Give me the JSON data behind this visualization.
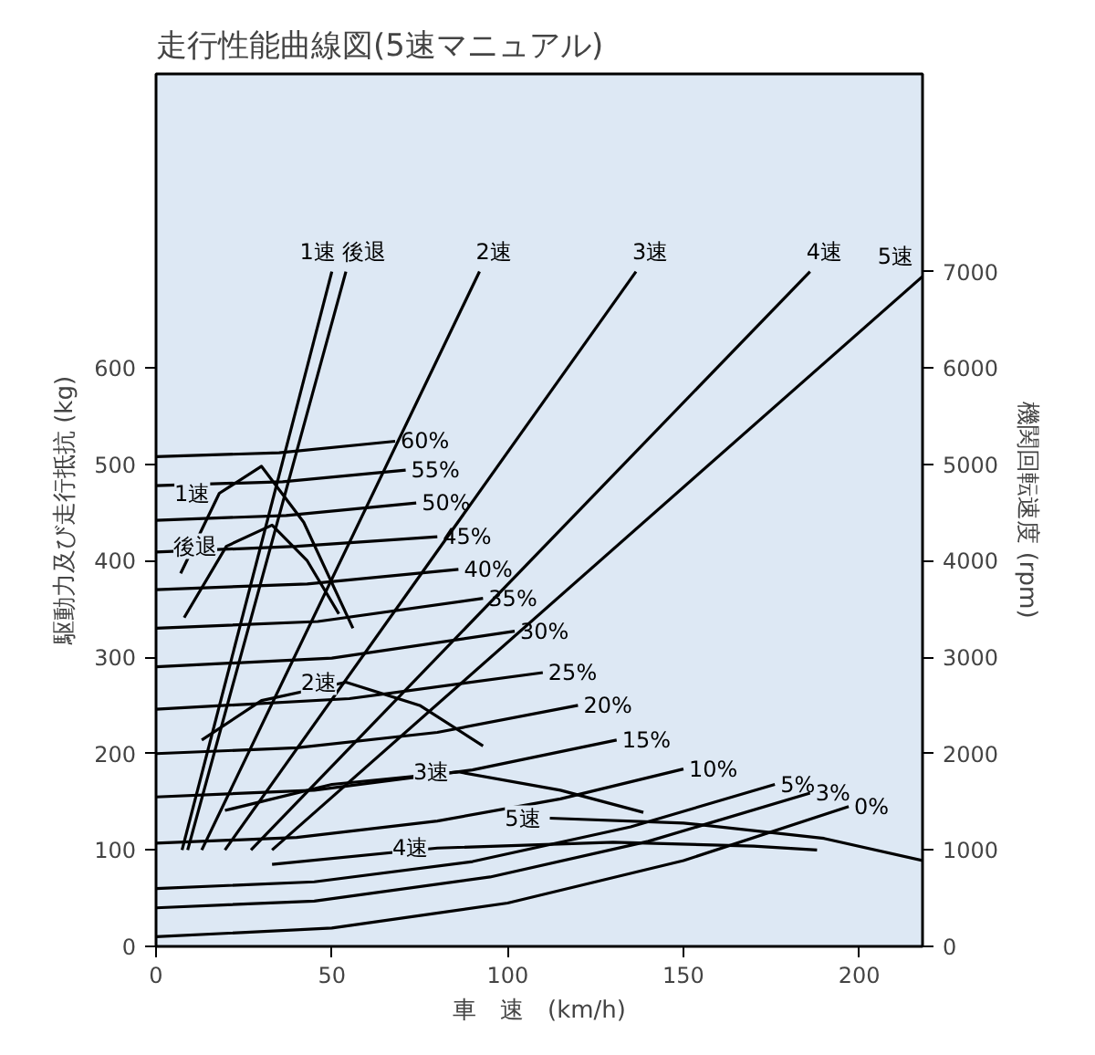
{
  "chart_data": {
    "type": "line",
    "title": "走行性能曲線図(5速マニュアル)",
    "xlabel": "車　速　(km/h)",
    "ylabel": "駆動力及び走行抵抗 (kg)",
    "y2label": "機関回転速度 (rpm)",
    "xlim": [
      0,
      218
    ],
    "xticks": [
      0,
      50,
      100,
      150,
      200
    ],
    "ylim": [
      0,
      905
    ],
    "yticks": [
      0,
      100,
      200,
      300,
      400,
      500,
      600
    ],
    "y2lim": [
      0,
      9050
    ],
    "y2ticks": [
      0,
      1000,
      2000,
      3000,
      4000,
      5000,
      6000,
      7000
    ],
    "grid": false,
    "line_style": "solid",
    "marker": "none",
    "series": [
      {
        "name": "1速",
        "color": "#000000",
        "axis": "y2",
        "x": [
          7.4,
          50
        ],
        "values": [
          1000,
          7000
        ]
      },
      {
        "name": "後退",
        "color": "#000000",
        "axis": "y2",
        "x": [
          9,
          54
        ],
        "values": [
          1000,
          7000
        ]
      },
      {
        "name": "2速",
        "color": "#000000",
        "axis": "y2",
        "x": [
          13,
          92
        ],
        "values": [
          1000,
          7000
        ]
      },
      {
        "name": "3速",
        "color": "#000000",
        "axis": "y2",
        "x": [
          19.6,
          136.5
        ],
        "values": [
          1000,
          7000
        ]
      },
      {
        "name": "4速",
        "color": "#000000",
        "axis": "y2",
        "x": [
          27,
          186
        ],
        "values": [
          1000,
          7000
        ]
      },
      {
        "name": "5速",
        "color": "#000000",
        "axis": "y2",
        "x": [
          33,
          218
        ],
        "values": [
          1000,
          6950
        ]
      },
      {
        "name": "60%",
        "color": "#000000",
        "x": [
          0,
          35,
          68
        ],
        "values": [
          508,
          512,
          524
        ]
      },
      {
        "name": "55%",
        "color": "#000000",
        "x": [
          0,
          36,
          71
        ],
        "values": [
          478,
          482,
          494
        ]
      },
      {
        "name": "50%",
        "color": "#000000",
        "x": [
          0,
          37,
          74
        ],
        "values": [
          442,
          447,
          460
        ]
      },
      {
        "name": "45%",
        "color": "#000000",
        "x": [
          0,
          40,
          80
        ],
        "values": [
          409,
          415,
          425
        ]
      },
      {
        "name": "40%",
        "color": "#000000",
        "x": [
          0,
          43,
          86
        ],
        "values": [
          370,
          376,
          391
        ]
      },
      {
        "name": "35%",
        "color": "#000000",
        "x": [
          0,
          46,
          93
        ],
        "values": [
          330,
          337,
          361
        ]
      },
      {
        "name": "30%",
        "color": "#000000",
        "x": [
          0,
          50,
          102
        ],
        "values": [
          290,
          299,
          327
        ]
      },
      {
        "name": "25%",
        "color": "#000000",
        "x": [
          0,
          55,
          110
        ],
        "values": [
          246,
          257,
          284
        ]
      },
      {
        "name": "20%",
        "color": "#000000",
        "x": [
          0,
          40,
          80,
          120
        ],
        "values": [
          200,
          206,
          222,
          250
        ]
      },
      {
        "name": "15%",
        "color": "#000000",
        "x": [
          0,
          45,
          90,
          131
        ],
        "values": [
          155,
          162,
          183,
          214
        ]
      },
      {
        "name": "10%",
        "color": "#000000",
        "x": [
          0,
          40,
          80,
          115,
          150
        ],
        "values": [
          107,
          113,
          130,
          153,
          184
        ]
      },
      {
        "name": "5%",
        "color": "#000000",
        "x": [
          0,
          45,
          90,
          135,
          176
        ],
        "values": [
          60,
          67,
          88,
          124,
          168
        ]
      },
      {
        "name": "3%",
        "color": "#000000",
        "x": [
          0,
          45,
          95,
          140,
          186
        ],
        "values": [
          40,
          47,
          72,
          109,
          159
        ]
      },
      {
        "name": "0%",
        "color": "#000000",
        "x": [
          0,
          50,
          100,
          150,
          197
        ],
        "values": [
          10,
          19,
          45,
          89,
          145
        ]
      },
      {
        "color": "#000000",
        "x": [
          7,
          18,
          30,
          42,
          56
        ],
        "values": [
          387,
          470,
          498,
          440,
          330
        ]
      },
      {
        "color": "#000000",
        "x": [
          8,
          20,
          33,
          43,
          52
        ],
        "values": [
          341,
          415,
          437,
          400,
          345
        ]
      },
      {
        "color": "#000000",
        "x": [
          13,
          30,
          54,
          75,
          93
        ],
        "values": [
          214,
          255,
          274,
          250,
          208
        ]
      },
      {
        "color": "#000000",
        "x": [
          19.6,
          50,
          86,
          115,
          138.6
        ],
        "values": [
          141,
          168,
          181,
          162,
          139
        ]
      },
      {
        "color": "#000000",
        "x": [
          33,
          80,
          130,
          170,
          188
        ],
        "values": [
          85,
          102,
          108,
          104,
          100
        ]
      },
      {
        "color": "#000000",
        "x": [
          112,
          150,
          190,
          218
        ],
        "values": [
          133,
          128,
          112,
          89
        ]
      }
    ],
    "annotations": [
      {
        "text": "1速",
        "x": 18,
        "y": 470
      },
      {
        "text": "後退",
        "x": 20,
        "y": 415
      },
      {
        "text": "2速",
        "x": 54,
        "y": 274
      },
      {
        "text": "3速",
        "x": 86,
        "y": 181
      },
      {
        "text": "4速",
        "x": 80,
        "y": 102
      },
      {
        "text": "5速",
        "x": 112,
        "y": 133
      }
    ]
  }
}
